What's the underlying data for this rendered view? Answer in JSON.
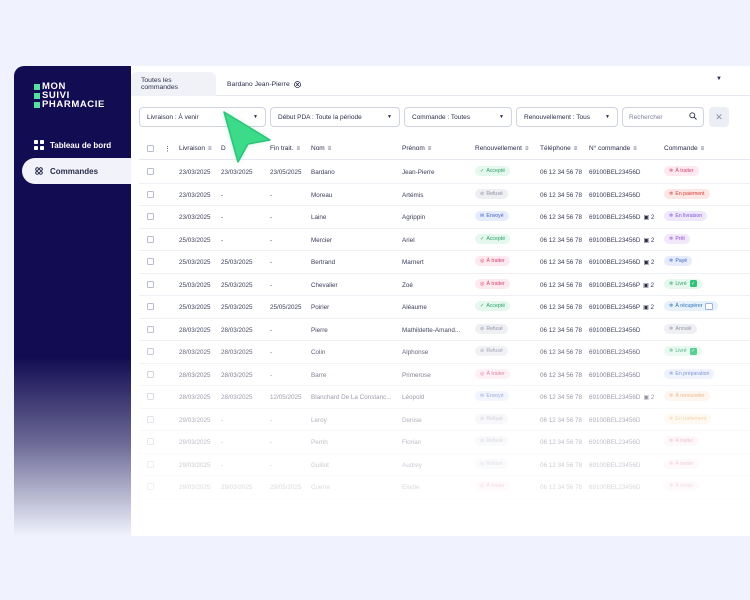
{
  "logo": {
    "lines": [
      "MON",
      "SUIVI",
      "PHARMACIE"
    ]
  },
  "sidebar": {
    "items": [
      {
        "label": "Tableau de bord",
        "icon": "grid-icon"
      },
      {
        "label": "Commandes",
        "icon": "pills-icon"
      }
    ]
  },
  "tabs": [
    {
      "label": "Toutes les commandes"
    },
    {
      "label": "Bardano Jean-Pierre"
    }
  ],
  "filters": [
    {
      "label": "Livraison : À venir"
    },
    {
      "label": "Début PDA : Toute la période"
    },
    {
      "label": "Commande : Toutes"
    },
    {
      "label": "Renouvellement : Tous"
    }
  ],
  "search": {
    "placeholder": "Rechercher"
  },
  "table": {
    "headers": {
      "livraison": "Livraison",
      "debut": "D",
      "fin": "Fin trait.",
      "nom": "Nom",
      "prenom": "Prénom",
      "renouvellement": "Renouvellement",
      "telephone": "Téléphone",
      "commande_num": "N° commande",
      "commande": "Commande"
    },
    "rows": [
      {
        "livraison": "23/03/2025",
        "debut": "23/03/2025",
        "fin": "23/05/2025",
        "nom": "Bardano",
        "prenom": "Jean-Pierre",
        "renouv": "Accepté",
        "tel": "06 12 34 56 78",
        "num": "69100BEL23456D",
        "count": "",
        "statut": "À traiter"
      },
      {
        "livraison": "23/03/2025",
        "debut": "-",
        "fin": "-",
        "nom": "Moreau",
        "prenom": "Artémis",
        "renouv": "Refusé",
        "tel": "06 12 34 56 78",
        "num": "69100BEL23456D",
        "count": "",
        "statut": "En paiement"
      },
      {
        "livraison": "23/03/2025",
        "debut": "-",
        "fin": "-",
        "nom": "Laine",
        "prenom": "Agrippin",
        "renouv": "Envoyé",
        "tel": "06 12 34 56 78",
        "num": "69100BEL23456D",
        "count": "2",
        "statut": "En livraison"
      },
      {
        "livraison": "25/03/2025",
        "debut": "-",
        "fin": "-",
        "nom": "Mercier",
        "prenom": "Ariel",
        "renouv": "Accepté",
        "tel": "06 12 34 56 78",
        "num": "69100BEL23456D",
        "count": "2",
        "statut": "Prêt"
      },
      {
        "livraison": "25/03/2025",
        "debut": "25/03/2025",
        "fin": "-",
        "nom": "Bertrand",
        "prenom": "Marnert",
        "renouv": "À traiter",
        "tel": "06 12 34 56 78",
        "num": "69100BEL23456D",
        "count": "2",
        "statut": "Payé"
      },
      {
        "livraison": "25/03/2025",
        "debut": "25/03/2025",
        "fin": "-",
        "nom": "Chevalier",
        "prenom": "Zoé",
        "renouv": "À traiter",
        "tel": "06 12 34 56 78",
        "num": "69100BEL23456P",
        "count": "2",
        "statut": "Livré"
      },
      {
        "livraison": "25/03/2025",
        "debut": "25/03/2025",
        "fin": "25/05/2025",
        "nom": "Poirier",
        "prenom": "Aléaume",
        "renouv": "Accepté",
        "tel": "06 12 34 56 78",
        "num": "69100BEL23456P",
        "count": "2",
        "statut": "À récupérer"
      },
      {
        "livraison": "28/03/2025",
        "debut": "28/03/2025",
        "fin": "-",
        "nom": "Pierre",
        "prenom": "Mathildette-Amand...",
        "renouv": "Refusé",
        "tel": "06 12 34 56 78",
        "num": "69100BEL23456D",
        "count": "",
        "statut": "Annulé"
      },
      {
        "livraison": "28/03/2025",
        "debut": "28/03/2025",
        "fin": "-",
        "nom": "Colin",
        "prenom": "Alphonse",
        "renouv": "Refusé",
        "tel": "06 12 34 56 78",
        "num": "69100BEL23456D",
        "count": "",
        "statut": "Livré"
      },
      {
        "livraison": "28/03/2025",
        "debut": "28/03/2025",
        "fin": "-",
        "nom": "Barre",
        "prenom": "Primerose",
        "renouv": "À traiter",
        "tel": "06 12 34 56 78",
        "num": "69100BEL23456D",
        "count": "",
        "statut": "En préparation"
      },
      {
        "livraison": "28/03/2025",
        "debut": "28/03/2025",
        "fin": "12/05/2025",
        "nom": "Blanchard De La Constanc...",
        "prenom": "Léopold",
        "renouv": "Envoyé",
        "tel": "06 12 34 56 78",
        "num": "69100BEL23456D",
        "count": "2",
        "statut": "À renouveler"
      },
      {
        "livraison": "29/03/2025",
        "debut": "-",
        "fin": "-",
        "nom": "Leroy",
        "prenom": "Denise",
        "renouv": "Refusé",
        "tel": "06 12 34 56 78",
        "num": "69100BEL23456D",
        "count": "",
        "statut": "En traitement"
      },
      {
        "livraison": "29/03/2025",
        "debut": "-",
        "fin": "-",
        "nom": "Perrin",
        "prenom": "Florian",
        "renouv": "Refusé",
        "tel": "06 12 34 56 78",
        "num": "69100BEL23456D",
        "count": "",
        "statut": "À traiter"
      },
      {
        "livraison": "29/03/2025",
        "debut": "-",
        "fin": "-",
        "nom": "Guillot",
        "prenom": "Audrey",
        "renouv": "Refusé",
        "tel": "06 12 34 56 78",
        "num": "69100BEL23456D",
        "count": "",
        "statut": "À traiter"
      },
      {
        "livraison": "29/03/2025",
        "debut": "29/03/2025",
        "fin": "29/05/2025",
        "nom": "Cuerre",
        "prenom": "Elodie",
        "renouv": "À traiter",
        "tel": "06 12 34 56 78",
        "num": "69100BEL23456D",
        "count": "",
        "statut": "À traiter"
      }
    ]
  },
  "colors": {
    "sidebar": "#120c52",
    "accent_green": "#58e0a2",
    "cursor": "#3bdb8a"
  }
}
